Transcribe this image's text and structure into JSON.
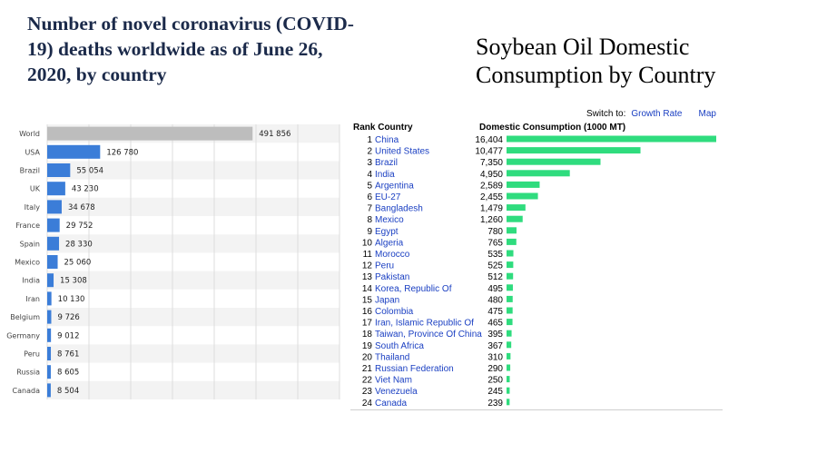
{
  "titles": {
    "left": "Number of novel coronavirus (COVID-19) deaths worldwide as of June 26, 2020, by country",
    "right": "Soybean Oil Domestic Consumption by Country"
  },
  "soy_controls": {
    "switch_label": "Switch to:",
    "growth_rate": "Growth Rate",
    "map": "Map"
  },
  "colors": {
    "covid_bar": "#3b7dd8",
    "world_bar": "#bdbdbd",
    "soy_bar": "#2fdc7e",
    "link": "#1a3fc2"
  },
  "chart_data": [
    {
      "type": "bar",
      "orientation": "horizontal",
      "title": "Number of novel coronavirus (COVID-19) deaths worldwide as of June 26, 2020, by country",
      "categories": [
        "World",
        "USA",
        "Brazil",
        "UK",
        "Italy",
        "France",
        "Spain",
        "Mexico",
        "India",
        "Iran",
        "Belgium",
        "Germany",
        "Peru",
        "Russia",
        "Canada"
      ],
      "values": [
        491856,
        126780,
        55054,
        43230,
        34678,
        29752,
        28330,
        25060,
        15308,
        10130,
        9726,
        9012,
        8761,
        8605,
        8504
      ],
      "value_labels": [
        "491 856",
        "126 780",
        "55 054",
        "43 230",
        "34 678",
        "29 752",
        "28 330",
        "25 060",
        "15 308",
        "10 130",
        "9 726",
        "9 012",
        "8 761",
        "8 605",
        "8 504"
      ],
      "xlim": [
        0,
        700000
      ],
      "grid": true
    },
    {
      "type": "bar",
      "orientation": "horizontal",
      "title": "Soybean Oil Domestic Consumption by Country",
      "col_headers": [
        "Rank Country",
        "Domestic Consumption (1000 MT)"
      ],
      "ranks": [
        1,
        2,
        3,
        4,
        5,
        6,
        7,
        8,
        9,
        10,
        11,
        12,
        13,
        14,
        15,
        16,
        17,
        18,
        19,
        20,
        21,
        22,
        23,
        24
      ],
      "categories": [
        "China",
        "United States",
        "Brazil",
        "India",
        "Argentina",
        "EU-27",
        "Bangladesh",
        "Mexico",
        "Egypt",
        "Algeria",
        "Morocco",
        "Peru",
        "Pakistan",
        "Korea, Republic Of",
        "Japan",
        "Colombia",
        "Iran, Islamic Republic Of",
        "Taiwan, Province Of China",
        "South Africa",
        "Thailand",
        "Russian Federation",
        "Viet Nam",
        "Venezuela",
        "Canada"
      ],
      "values": [
        16404,
        10477,
        7350,
        4950,
        2589,
        2455,
        1479,
        1260,
        780,
        765,
        535,
        525,
        512,
        495,
        480,
        475,
        465,
        395,
        367,
        310,
        290,
        250,
        245,
        239
      ],
      "value_labels": [
        "16,404",
        "10,477",
        "7,350",
        "4,950",
        "2,589",
        "2,455",
        "1,479",
        "1,260",
        "780",
        "765",
        "535",
        "525",
        "512",
        "495",
        "480",
        "475",
        "465",
        "395",
        "367",
        "310",
        "290",
        "250",
        "245",
        "239"
      ],
      "xlim": [
        0,
        16404
      ]
    }
  ]
}
